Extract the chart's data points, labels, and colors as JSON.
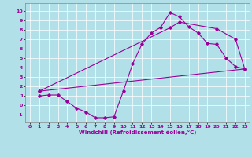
{
  "xlabel": "Windchill (Refroidissement éolien,°C)",
  "bg_color": "#b2e0e8",
  "line_color": "#990099",
  "line1_x": [
    1,
    2,
    3,
    4,
    5,
    6,
    7,
    8,
    9,
    10,
    11,
    12,
    13,
    14,
    15,
    16,
    17,
    18,
    19,
    20,
    21,
    22,
    23
  ],
  "line1_y": [
    1.0,
    1.1,
    1.1,
    0.4,
    -0.3,
    -0.7,
    -1.3,
    -1.3,
    -1.2,
    1.5,
    4.4,
    6.5,
    7.65,
    8.25,
    9.8,
    9.35,
    8.3,
    7.65,
    6.55,
    6.45,
    5.0,
    4.1,
    3.85
  ],
  "line2_x": [
    1,
    23
  ],
  "line2_y": [
    1.5,
    3.85
  ],
  "line3_x": [
    1,
    15,
    16,
    20,
    22,
    23
  ],
  "line3_y": [
    1.5,
    8.2,
    8.8,
    8.1,
    7.0,
    3.85
  ],
  "xlim": [
    -0.5,
    23.5
  ],
  "ylim": [
    -1.8,
    10.8
  ],
  "yticks": [
    -1,
    0,
    1,
    2,
    3,
    4,
    5,
    6,
    7,
    8,
    9,
    10
  ],
  "xticks": [
    0,
    1,
    2,
    3,
    4,
    5,
    6,
    7,
    8,
    9,
    10,
    11,
    12,
    13,
    14,
    15,
    16,
    17,
    18,
    19,
    20,
    21,
    22,
    23
  ]
}
